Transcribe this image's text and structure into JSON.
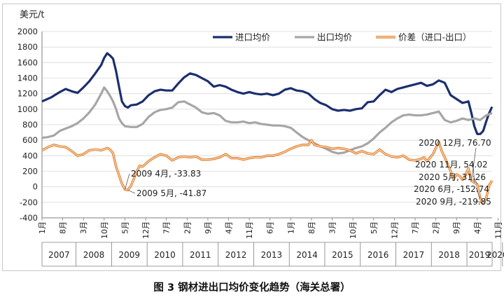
{
  "caption": "图 3  钢材进出口均价变化趋势（海关总署）",
  "colors": {
    "import": "#1b2f6e",
    "export": "#a6a6a6",
    "diff": "#e07b24",
    "diff_inner": "#fbe0c8",
    "grid": "#d9d9d9",
    "axis": "#7f7f7f",
    "text": "#222222"
  },
  "chart_data": {
    "type": "line",
    "title": "",
    "ylabel": "美元/t",
    "xlabel": "",
    "ylim": [
      -400,
      2000
    ],
    "yticks": [
      -400,
      -200,
      0,
      200,
      400,
      600,
      800,
      1000,
      1200,
      1400,
      1600,
      1800,
      2000
    ],
    "month_ticks": [
      "1月",
      "8月",
      "3月",
      "10月",
      "5月",
      "12月",
      "7月",
      "2月",
      "9月",
      "4月",
      "11月",
      "6月",
      "1月",
      "8月",
      "3月",
      "10月",
      "5月",
      "12月",
      "7月",
      "2月",
      "9月",
      "4月",
      "11月",
      "6月"
    ],
    "years": [
      "2007",
      "2008",
      "2009",
      "2010",
      "2011",
      "2012",
      "2013",
      "2014",
      "2015",
      "2016",
      "2017",
      "2018",
      "2019",
      "2020"
    ],
    "legend": [
      "进口均价",
      "出口均价",
      "价差（进口-出口）"
    ],
    "series": [
      {
        "name": "进口均价",
        "key": "import",
        "points": [
          [
            0,
            1100
          ],
          [
            3,
            1150
          ],
          [
            6,
            1220
          ],
          [
            8,
            1260
          ],
          [
            10,
            1230
          ],
          [
            12,
            1210
          ],
          [
            14,
            1280
          ],
          [
            16,
            1360
          ],
          [
            18,
            1460
          ],
          [
            20,
            1570
          ],
          [
            21,
            1660
          ],
          [
            22,
            1720
          ],
          [
            23,
            1690
          ],
          [
            24,
            1650
          ],
          [
            25,
            1490
          ],
          [
            26,
            1290
          ],
          [
            27,
            1100
          ],
          [
            28,
            1040
          ],
          [
            29,
            1020
          ],
          [
            30,
            1050
          ],
          [
            32,
            1060
          ],
          [
            34,
            1100
          ],
          [
            36,
            1180
          ],
          [
            38,
            1230
          ],
          [
            40,
            1250
          ],
          [
            42,
            1240
          ],
          [
            44,
            1240
          ],
          [
            46,
            1330
          ],
          [
            48,
            1410
          ],
          [
            50,
            1460
          ],
          [
            52,
            1440
          ],
          [
            54,
            1400
          ],
          [
            56,
            1360
          ],
          [
            58,
            1290
          ],
          [
            60,
            1310
          ],
          [
            62,
            1290
          ],
          [
            64,
            1250
          ],
          [
            66,
            1220
          ],
          [
            68,
            1200
          ],
          [
            70,
            1220
          ],
          [
            72,
            1200
          ],
          [
            74,
            1190
          ],
          [
            76,
            1200
          ],
          [
            78,
            1180
          ],
          [
            80,
            1200
          ],
          [
            82,
            1250
          ],
          [
            84,
            1270
          ],
          [
            86,
            1240
          ],
          [
            88,
            1230
          ],
          [
            90,
            1200
          ],
          [
            92,
            1130
          ],
          [
            94,
            1080
          ],
          [
            96,
            1050
          ],
          [
            98,
            1000
          ],
          [
            100,
            980
          ],
          [
            102,
            990
          ],
          [
            104,
            980
          ],
          [
            106,
            1000
          ],
          [
            108,
            1010
          ],
          [
            110,
            1090
          ],
          [
            112,
            1100
          ],
          [
            114,
            1180
          ],
          [
            116,
            1250
          ],
          [
            118,
            1220
          ],
          [
            120,
            1260
          ],
          [
            122,
            1280
          ],
          [
            124,
            1300
          ],
          [
            126,
            1320
          ],
          [
            128,
            1340
          ],
          [
            130,
            1300
          ],
          [
            132,
            1320
          ],
          [
            134,
            1370
          ],
          [
            136,
            1340
          ],
          [
            138,
            1180
          ],
          [
            140,
            1130
          ],
          [
            142,
            1080
          ],
          [
            144,
            1100
          ],
          [
            145,
            950
          ],
          [
            146,
            780
          ],
          [
            147,
            680
          ],
          [
            148,
            680
          ],
          [
            149,
            720
          ],
          [
            150,
            840
          ],
          [
            151,
            950
          ],
          [
            152,
            1030
          ]
        ]
      },
      {
        "name": "出口均价",
        "key": "export",
        "points": [
          [
            0,
            630
          ],
          [
            2,
            640
          ],
          [
            4,
            660
          ],
          [
            6,
            720
          ],
          [
            8,
            750
          ],
          [
            10,
            780
          ],
          [
            12,
            820
          ],
          [
            14,
            880
          ],
          [
            16,
            960
          ],
          [
            18,
            1060
          ],
          [
            20,
            1200
          ],
          [
            21,
            1280
          ],
          [
            22,
            1230
          ],
          [
            23,
            1170
          ],
          [
            24,
            1100
          ],
          [
            25,
            1000
          ],
          [
            26,
            880
          ],
          [
            27,
            820
          ],
          [
            28,
            780
          ],
          [
            30,
            770
          ],
          [
            32,
            770
          ],
          [
            34,
            810
          ],
          [
            36,
            900
          ],
          [
            38,
            960
          ],
          [
            40,
            990
          ],
          [
            42,
            1000
          ],
          [
            44,
            1020
          ],
          [
            46,
            1090
          ],
          [
            48,
            1100
          ],
          [
            50,
            1060
          ],
          [
            52,
            1020
          ],
          [
            54,
            960
          ],
          [
            56,
            940
          ],
          [
            58,
            950
          ],
          [
            60,
            920
          ],
          [
            62,
            850
          ],
          [
            64,
            830
          ],
          [
            66,
            830
          ],
          [
            68,
            840
          ],
          [
            70,
            820
          ],
          [
            72,
            830
          ],
          [
            74,
            810
          ],
          [
            76,
            800
          ],
          [
            78,
            790
          ],
          [
            80,
            790
          ],
          [
            82,
            780
          ],
          [
            84,
            760
          ],
          [
            86,
            700
          ],
          [
            88,
            640
          ],
          [
            90,
            600
          ],
          [
            92,
            560
          ],
          [
            94,
            520
          ],
          [
            96,
            490
          ],
          [
            98,
            450
          ],
          [
            100,
            430
          ],
          [
            102,
            440
          ],
          [
            104,
            470
          ],
          [
            106,
            500
          ],
          [
            108,
            520
          ],
          [
            110,
            560
          ],
          [
            112,
            620
          ],
          [
            114,
            700
          ],
          [
            116,
            760
          ],
          [
            118,
            830
          ],
          [
            120,
            880
          ],
          [
            122,
            920
          ],
          [
            124,
            930
          ],
          [
            126,
            920
          ],
          [
            128,
            920
          ],
          [
            130,
            930
          ],
          [
            132,
            950
          ],
          [
            134,
            970
          ],
          [
            136,
            860
          ],
          [
            138,
            830
          ],
          [
            140,
            850
          ],
          [
            142,
            880
          ],
          [
            144,
            860
          ],
          [
            146,
            880
          ],
          [
            148,
            860
          ],
          [
            150,
            920
          ],
          [
            152,
            950
          ]
        ]
      },
      {
        "name": "价差（进口-出口）",
        "key": "diff",
        "points": [
          [
            0,
            470
          ],
          [
            2,
            510
          ],
          [
            4,
            540
          ],
          [
            6,
            520
          ],
          [
            8,
            510
          ],
          [
            10,
            460
          ],
          [
            12,
            400
          ],
          [
            14,
            420
          ],
          [
            16,
            470
          ],
          [
            18,
            480
          ],
          [
            20,
            470
          ],
          [
            22,
            500
          ],
          [
            23,
            480
          ],
          [
            24,
            430
          ],
          [
            25,
            260
          ],
          [
            26,
            150
          ],
          [
            27,
            40
          ],
          [
            28,
            -33.83
          ],
          [
            29,
            -41.87
          ],
          [
            30,
            10
          ],
          [
            31,
            100
          ],
          [
            32,
            200
          ],
          [
            33,
            270
          ],
          [
            34,
            260
          ],
          [
            36,
            330
          ],
          [
            38,
            380
          ],
          [
            40,
            420
          ],
          [
            42,
            400
          ],
          [
            44,
            340
          ],
          [
            46,
            380
          ],
          [
            48,
            390
          ],
          [
            50,
            380
          ],
          [
            52,
            390
          ],
          [
            54,
            350
          ],
          [
            56,
            350
          ],
          [
            58,
            360
          ],
          [
            60,
            380
          ],
          [
            62,
            420
          ],
          [
            64,
            370
          ],
          [
            66,
            370
          ],
          [
            68,
            350
          ],
          [
            70,
            370
          ],
          [
            72,
            380
          ],
          [
            74,
            380
          ],
          [
            76,
            400
          ],
          [
            78,
            400
          ],
          [
            80,
            420
          ],
          [
            82,
            450
          ],
          [
            84,
            490
          ],
          [
            86,
            520
          ],
          [
            88,
            540
          ],
          [
            90,
            540
          ],
          [
            91,
            600
          ],
          [
            92,
            540
          ],
          [
            94,
            520
          ],
          [
            96,
            510
          ],
          [
            98,
            490
          ],
          [
            100,
            500
          ],
          [
            102,
            490
          ],
          [
            104,
            470
          ],
          [
            106,
            430
          ],
          [
            108,
            460
          ],
          [
            110,
            430
          ],
          [
            112,
            420
          ],
          [
            114,
            480
          ],
          [
            116,
            420
          ],
          [
            118,
            390
          ],
          [
            120,
            380
          ],
          [
            122,
            400
          ],
          [
            124,
            350
          ],
          [
            126,
            340
          ],
          [
            128,
            360
          ],
          [
            129,
            380
          ],
          [
            130,
            330
          ],
          [
            132,
            420
          ],
          [
            134,
            580
          ],
          [
            135,
            460
          ],
          [
            136,
            380
          ],
          [
            137,
            290
          ],
          [
            138,
            200
          ],
          [
            139,
            100
          ],
          [
            140,
            160
          ],
          [
            141,
            140
          ],
          [
            142,
            90
          ],
          [
            143,
            150
          ],
          [
            144,
            240
          ],
          [
            145,
            76.7
          ],
          [
            146,
            54.02
          ],
          [
            147,
            31.26
          ],
          [
            148,
            -152.74
          ],
          [
            149,
            -219.85
          ],
          [
            150,
            -150
          ],
          [
            151,
            20
          ],
          [
            152,
            80
          ]
        ]
      }
    ],
    "annotations": [
      {
        "label": "2009 4月, -33.83",
        "i": 28,
        "value": -33.83
      },
      {
        "label": "2009 5月, -41.87",
        "i": 29,
        "value": -41.87
      },
      {
        "label": "2020 12月, 76.70",
        "i": 145,
        "value": 76.7
      },
      {
        "label": "2020 11月, 54.02",
        "i": 146,
        "value": 54.02
      },
      {
        "label": "2020 5月, 31.26",
        "i": 147,
        "value": 31.26
      },
      {
        "label": "2020 6月, -152.74",
        "i": 148,
        "value": -152.74
      },
      {
        "label": "2020 9月, -219.85",
        "i": 149,
        "value": -219.85
      }
    ]
  }
}
